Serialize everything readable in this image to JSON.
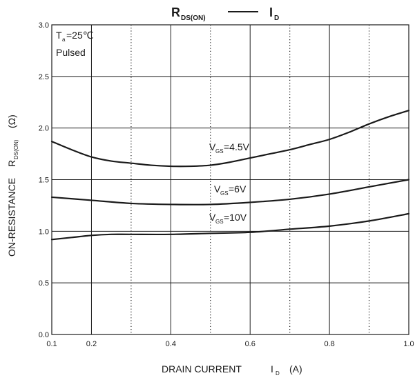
{
  "chart_data": {
    "type": "line",
    "title": {
      "main": "R",
      "main_sub": "DS(ON)",
      "connector": "—",
      "vs": "I",
      "vs_sub": "D"
    },
    "xlabel": {
      "main": "DRAIN CURRENT",
      "sym": "I",
      "sym_sub": "D",
      "unit": "(A)"
    },
    "ylabel": {
      "main": "ON-RESISTANCE",
      "sym": "R",
      "sym_sub": "DS(ON)",
      "unit": "(Ω)"
    },
    "xlim": [
      0.1,
      1.0
    ],
    "ylim": [
      0.0,
      3.0
    ],
    "x_ticks": [
      0.1,
      0.2,
      0.4,
      0.6,
      0.8,
      1.0
    ],
    "x_tick_labels": [
      "0.1",
      "0.2",
      "0.4",
      "0.6",
      "0.8",
      "1.0"
    ],
    "x_grid_solid": [
      0.2,
      0.4,
      0.6,
      0.8
    ],
    "x_grid_dotted": [
      0.3,
      0.5,
      0.7,
      0.9
    ],
    "y_ticks": [
      0.0,
      0.5,
      1.0,
      1.5,
      2.0,
      2.5,
      3.0
    ],
    "y_tick_labels": [
      "0.0",
      "0.5",
      "1.0",
      "1.5",
      "2.0",
      "2.5",
      "3.0"
    ],
    "grid": true,
    "conditions": {
      "temp_sym": "T",
      "temp_sub": "a",
      "temp_val": "=25℃",
      "mode": "Pulsed"
    },
    "series": [
      {
        "label_main": "V",
        "label_sub": "GS",
        "label_val": "=4.5V",
        "x": [
          0.1,
          0.15,
          0.2,
          0.25,
          0.3,
          0.35,
          0.4,
          0.45,
          0.5,
          0.55,
          0.6,
          0.65,
          0.7,
          0.75,
          0.8,
          0.85,
          0.9,
          0.95,
          1.0
        ],
        "y": [
          1.87,
          1.79,
          1.72,
          1.68,
          1.66,
          1.64,
          1.63,
          1.63,
          1.64,
          1.67,
          1.71,
          1.75,
          1.79,
          1.84,
          1.89,
          1.96,
          2.04,
          2.11,
          2.17
        ]
      },
      {
        "label_main": "V",
        "label_sub": "GS",
        "label_val": "=6V",
        "x": [
          0.1,
          0.2,
          0.3,
          0.4,
          0.5,
          0.6,
          0.7,
          0.8,
          0.9,
          1.0
        ],
        "y": [
          1.33,
          1.3,
          1.27,
          1.26,
          1.26,
          1.28,
          1.31,
          1.36,
          1.43,
          1.5
        ]
      },
      {
        "label_main": "V",
        "label_sub": "GS",
        "label_val": "=10V",
        "x": [
          0.1,
          0.15,
          0.2,
          0.25,
          0.3,
          0.4,
          0.5,
          0.6,
          0.7,
          0.8,
          0.9,
          1.0
        ],
        "y": [
          0.92,
          0.94,
          0.96,
          0.97,
          0.97,
          0.97,
          0.98,
          0.99,
          1.02,
          1.05,
          1.1,
          1.17
        ]
      }
    ]
  }
}
